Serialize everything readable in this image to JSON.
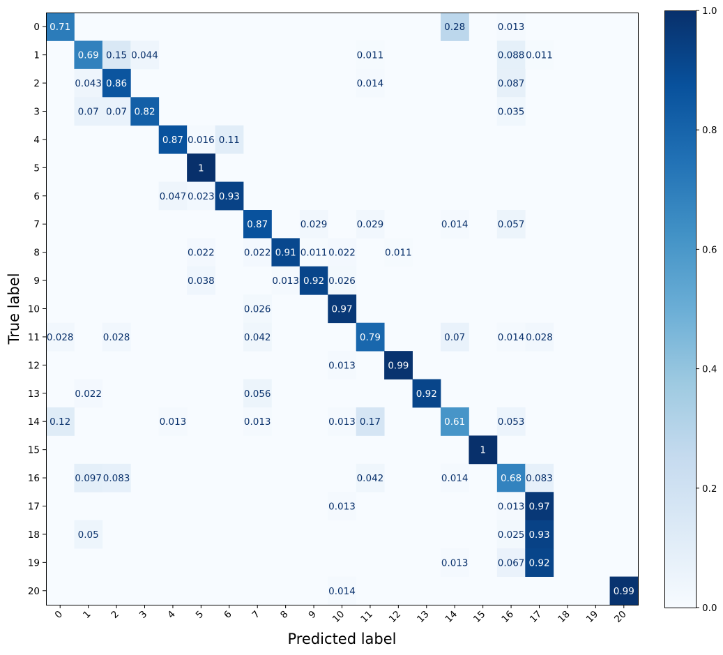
{
  "chart_data": {
    "type": "heatmap",
    "title": "",
    "xlabel": "Predicted label",
    "ylabel": "True label",
    "categories": [
      "0",
      "1",
      "2",
      "3",
      "4",
      "5",
      "6",
      "7",
      "8",
      "9",
      "10",
      "11",
      "12",
      "13",
      "14",
      "15",
      "16",
      "17",
      "18",
      "19",
      "20"
    ],
    "colorbar": {
      "range": [
        0,
        1
      ],
      "ticks": [
        0,
        0.2,
        0.4,
        0.6,
        0.8,
        1.0
      ],
      "tick_labels": [
        "0.0",
        "0.2",
        "0.4",
        "0.6",
        "0.8",
        "1.0"
      ],
      "colormap": "Blues"
    },
    "cells": [
      {
        "row": 0,
        "col": 0,
        "value": 0.71,
        "label": "0.71"
      },
      {
        "row": 0,
        "col": 14,
        "value": 0.28,
        "label": "0.28"
      },
      {
        "row": 0,
        "col": 16,
        "value": 0.013,
        "label": "0.013"
      },
      {
        "row": 1,
        "col": 1,
        "value": 0.69,
        "label": "0.69"
      },
      {
        "row": 1,
        "col": 2,
        "value": 0.15,
        "label": "0.15"
      },
      {
        "row": 1,
        "col": 3,
        "value": 0.044,
        "label": "0.044"
      },
      {
        "row": 1,
        "col": 11,
        "value": 0.011,
        "label": "0.011"
      },
      {
        "row": 1,
        "col": 16,
        "value": 0.088,
        "label": "0.088"
      },
      {
        "row": 1,
        "col": 17,
        "value": 0.011,
        "label": "0.011"
      },
      {
        "row": 2,
        "col": 1,
        "value": 0.043,
        "label": "0.043"
      },
      {
        "row": 2,
        "col": 2,
        "value": 0.86,
        "label": "0.86"
      },
      {
        "row": 2,
        "col": 11,
        "value": 0.014,
        "label": "0.014"
      },
      {
        "row": 2,
        "col": 16,
        "value": 0.087,
        "label": "0.087"
      },
      {
        "row": 3,
        "col": 1,
        "value": 0.07,
        "label": "0.07"
      },
      {
        "row": 3,
        "col": 2,
        "value": 0.07,
        "label": "0.07"
      },
      {
        "row": 3,
        "col": 3,
        "value": 0.82,
        "label": "0.82"
      },
      {
        "row": 3,
        "col": 16,
        "value": 0.035,
        "label": "0.035"
      },
      {
        "row": 4,
        "col": 4,
        "value": 0.87,
        "label": "0.87"
      },
      {
        "row": 4,
        "col": 5,
        "value": 0.016,
        "label": "0.016"
      },
      {
        "row": 4,
        "col": 6,
        "value": 0.11,
        "label": "0.11"
      },
      {
        "row": 5,
        "col": 5,
        "value": 1.0,
        "label": "1"
      },
      {
        "row": 6,
        "col": 4,
        "value": 0.047,
        "label": "0.047"
      },
      {
        "row": 6,
        "col": 5,
        "value": 0.023,
        "label": "0.023"
      },
      {
        "row": 6,
        "col": 6,
        "value": 0.93,
        "label": "0.93"
      },
      {
        "row": 7,
        "col": 7,
        "value": 0.87,
        "label": "0.87"
      },
      {
        "row": 7,
        "col": 9,
        "value": 0.029,
        "label": "0.029"
      },
      {
        "row": 7,
        "col": 11,
        "value": 0.029,
        "label": "0.029"
      },
      {
        "row": 7,
        "col": 14,
        "value": 0.014,
        "label": "0.014"
      },
      {
        "row": 7,
        "col": 16,
        "value": 0.057,
        "label": "0.057"
      },
      {
        "row": 8,
        "col": 5,
        "value": 0.022,
        "label": "0.022"
      },
      {
        "row": 8,
        "col": 7,
        "value": 0.022,
        "label": "0.022"
      },
      {
        "row": 8,
        "col": 8,
        "value": 0.91,
        "label": "0.91"
      },
      {
        "row": 8,
        "col": 9,
        "value": 0.011,
        "label": "0.011"
      },
      {
        "row": 8,
        "col": 10,
        "value": 0.022,
        "label": "0.022"
      },
      {
        "row": 8,
        "col": 12,
        "value": 0.011,
        "label": "0.011"
      },
      {
        "row": 9,
        "col": 5,
        "value": 0.038,
        "label": "0.038"
      },
      {
        "row": 9,
        "col": 8,
        "value": 0.013,
        "label": "0.013"
      },
      {
        "row": 9,
        "col": 9,
        "value": 0.92,
        "label": "0.92"
      },
      {
        "row": 9,
        "col": 10,
        "value": 0.026,
        "label": "0.026"
      },
      {
        "row": 10,
        "col": 7,
        "value": 0.026,
        "label": "0.026"
      },
      {
        "row": 10,
        "col": 10,
        "value": 0.97,
        "label": "0.97"
      },
      {
        "row": 11,
        "col": 0,
        "value": 0.028,
        "label": "0.028"
      },
      {
        "row": 11,
        "col": 2,
        "value": 0.028,
        "label": "0.028"
      },
      {
        "row": 11,
        "col": 7,
        "value": 0.042,
        "label": "0.042"
      },
      {
        "row": 11,
        "col": 11,
        "value": 0.79,
        "label": "0.79"
      },
      {
        "row": 11,
        "col": 14,
        "value": 0.07,
        "label": "0.07"
      },
      {
        "row": 11,
        "col": 16,
        "value": 0.014,
        "label": "0.014"
      },
      {
        "row": 11,
        "col": 17,
        "value": 0.028,
        "label": "0.028"
      },
      {
        "row": 12,
        "col": 10,
        "value": 0.013,
        "label": "0.013"
      },
      {
        "row": 12,
        "col": 12,
        "value": 0.99,
        "label": "0.99"
      },
      {
        "row": 13,
        "col": 1,
        "value": 0.022,
        "label": "0.022"
      },
      {
        "row": 13,
        "col": 7,
        "value": 0.056,
        "label": "0.056"
      },
      {
        "row": 13,
        "col": 13,
        "value": 0.92,
        "label": "0.92"
      },
      {
        "row": 14,
        "col": 0,
        "value": 0.12,
        "label": "0.12"
      },
      {
        "row": 14,
        "col": 4,
        "value": 0.013,
        "label": "0.013"
      },
      {
        "row": 14,
        "col": 7,
        "value": 0.013,
        "label": "0.013"
      },
      {
        "row": 14,
        "col": 10,
        "value": 0.013,
        "label": "0.013"
      },
      {
        "row": 14,
        "col": 11,
        "value": 0.17,
        "label": "0.17"
      },
      {
        "row": 14,
        "col": 14,
        "value": 0.61,
        "label": "0.61"
      },
      {
        "row": 14,
        "col": 16,
        "value": 0.053,
        "label": "0.053"
      },
      {
        "row": 15,
        "col": 15,
        "value": 1.0,
        "label": "1"
      },
      {
        "row": 16,
        "col": 1,
        "value": 0.097,
        "label": "0.097"
      },
      {
        "row": 16,
        "col": 2,
        "value": 0.083,
        "label": "0.083"
      },
      {
        "row": 16,
        "col": 11,
        "value": 0.042,
        "label": "0.042"
      },
      {
        "row": 16,
        "col": 14,
        "value": 0.014,
        "label": "0.014"
      },
      {
        "row": 16,
        "col": 16,
        "value": 0.68,
        "label": "0.68"
      },
      {
        "row": 16,
        "col": 17,
        "value": 0.083,
        "label": "0.083"
      },
      {
        "row": 17,
        "col": 10,
        "value": 0.013,
        "label": "0.013"
      },
      {
        "row": 17,
        "col": 16,
        "value": 0.013,
        "label": "0.013"
      },
      {
        "row": 17,
        "col": 17,
        "value": 0.97,
        "label": "0.97"
      },
      {
        "row": 18,
        "col": 1,
        "value": 0.05,
        "label": "0.05"
      },
      {
        "row": 18,
        "col": 16,
        "value": 0.025,
        "label": "0.025"
      },
      {
        "row": 18,
        "col": 17,
        "value": 0.93,
        "label": "0.93"
      },
      {
        "row": 19,
        "col": 14,
        "value": 0.013,
        "label": "0.013"
      },
      {
        "row": 19,
        "col": 16,
        "value": 0.067,
        "label": "0.067"
      },
      {
        "row": 19,
        "col": 17,
        "value": 0.92,
        "label": "0.92"
      },
      {
        "row": 20,
        "col": 10,
        "value": 0.014,
        "label": "0.014"
      },
      {
        "row": 20,
        "col": 20,
        "value": 0.99,
        "label": "0.99"
      }
    ]
  }
}
